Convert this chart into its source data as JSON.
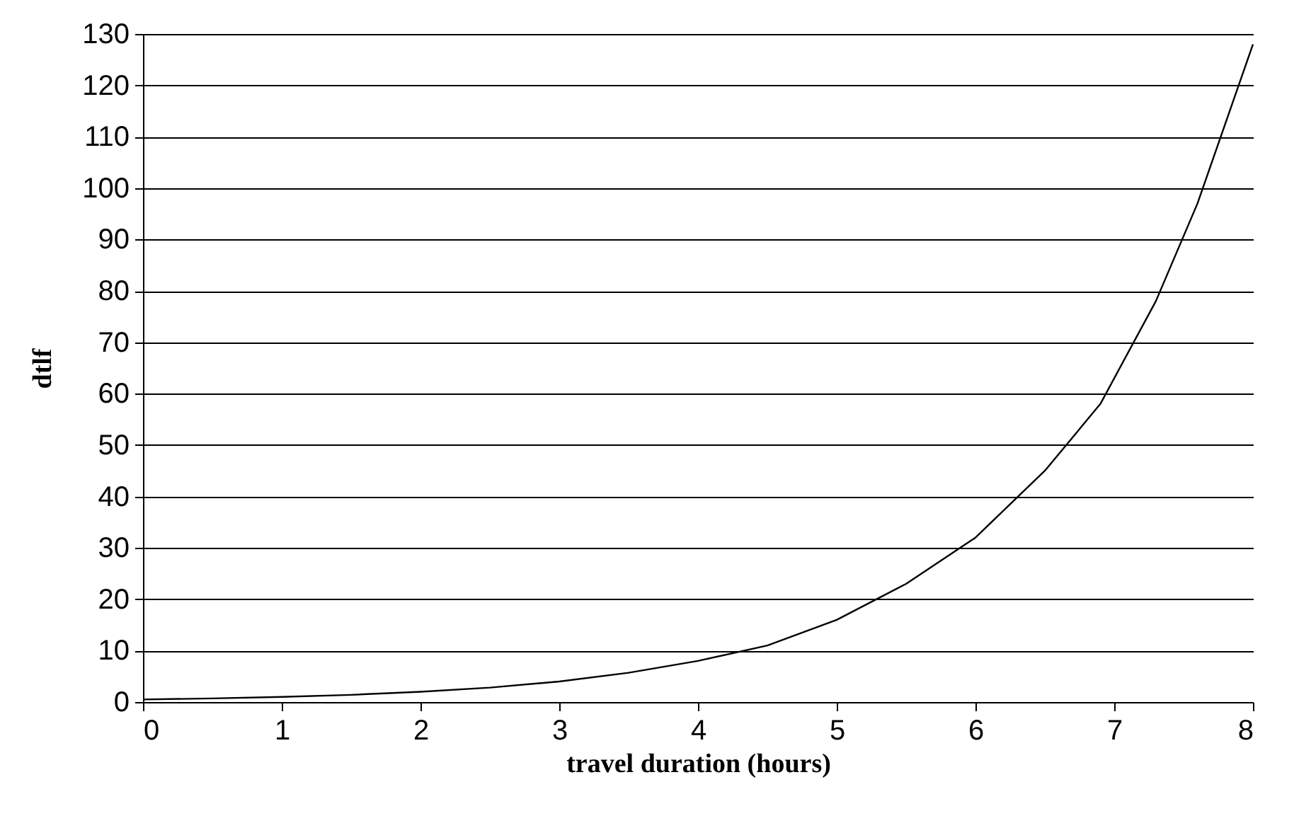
{
  "chart_data": {
    "type": "line",
    "xlabel": "travel duration (hours)",
    "ylabel": "dtlf",
    "x": [
      0,
      0.5,
      1,
      1.5,
      2,
      2.5,
      3,
      3.5,
      4,
      4.5,
      5,
      5.5,
      6,
      6.5,
      6.9,
      7.3,
      7.6,
      8
    ],
    "series": [
      {
        "color": "#000000",
        "values": [
          0.5,
          0.7,
          1,
          1.4,
          2,
          2.8,
          4,
          5.7,
          8,
          11,
          16,
          23,
          32,
          45,
          58,
          78,
          97,
          128
        ]
      }
    ],
    "xlim": [
      0,
      8
    ],
    "xticks": [
      0,
      1,
      2,
      3,
      4,
      5,
      6,
      7,
      8
    ],
    "ylim": [
      0,
      130
    ],
    "yticks": [
      0,
      10,
      20,
      30,
      40,
      50,
      60,
      70,
      80,
      90,
      100,
      110,
      120,
      130
    ],
    "grid": "y",
    "marker": "none",
    "line_style": "solid"
  }
}
